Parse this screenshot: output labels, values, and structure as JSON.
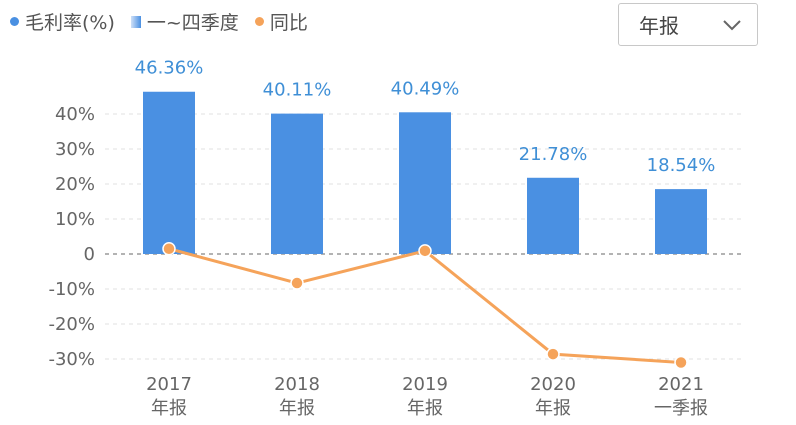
{
  "legend": {
    "gross_margin": "毛利率(%)",
    "quarters": "一~四季度",
    "yoy": "同比"
  },
  "period_select": {
    "value": "年报"
  },
  "colors": {
    "bar": "#4a90e2",
    "line": "#f5a35a",
    "grid": "#e0e0e0",
    "zero": "#9a9a9a"
  },
  "chart_data": {
    "type": "bar",
    "categories": [
      "2017\n年报",
      "2018\n年报",
      "2019\n年报",
      "2020\n年报",
      "2021\n一季报"
    ],
    "series": [
      {
        "name": "毛利率(%)",
        "type": "bar",
        "values": [
          46.36,
          40.11,
          40.49,
          21.78,
          18.54
        ],
        "labels": [
          "46.36%",
          "40.11%",
          "40.49%",
          "21.78%",
          "18.54%"
        ]
      },
      {
        "name": "同比",
        "type": "line",
        "values": [
          1.5,
          -8.3,
          0.9,
          -28.6,
          -31.0
        ]
      }
    ],
    "y_ticks": [
      40,
      30,
      20,
      10,
      0,
      -10,
      -20,
      -30
    ],
    "y_tick_labels": [
      "40%",
      "30%",
      "20%",
      "10%",
      "0",
      "-10%",
      "-20%",
      "-30%"
    ],
    "ylim": [
      -32,
      50
    ],
    "grid": true,
    "legend_position": "top-left"
  }
}
